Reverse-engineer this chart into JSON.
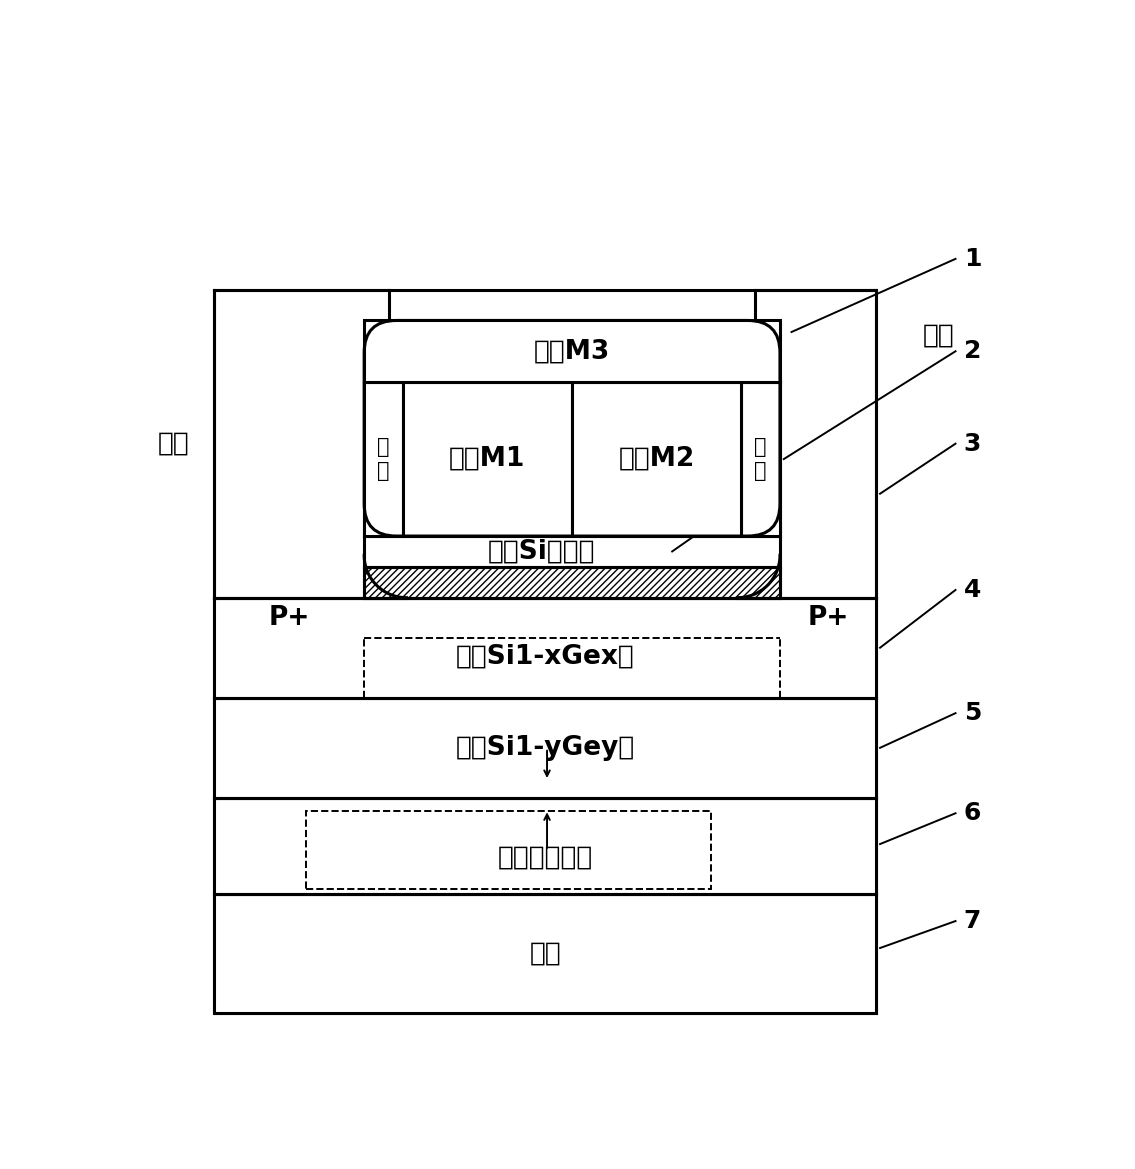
{
  "bg": "#ffffff",
  "lw": 2.2,
  "lw_t": 1.4,
  "fs": 19,
  "fs_sw": 15,
  "fs_n": 18,
  "labels": {
    "m3": "金属M3",
    "m1": "金属M1",
    "m2": "金属M2",
    "sw": "侧\n墙",
    "src": "源极",
    "drn": "漏极",
    "pp": "P+",
    "si_ch": "应变Si沟道层",
    "s_sige": "应变Si1-xGex层",
    "r_sige": "弛豫Si1-yGey层",
    "box": "台阶式埋氧层",
    "sub": "衬底",
    "n1": "1",
    "n2": "2",
    "n3": "3",
    "n4": "4",
    "n5": "5",
    "n6": "6",
    "n7": "7"
  }
}
